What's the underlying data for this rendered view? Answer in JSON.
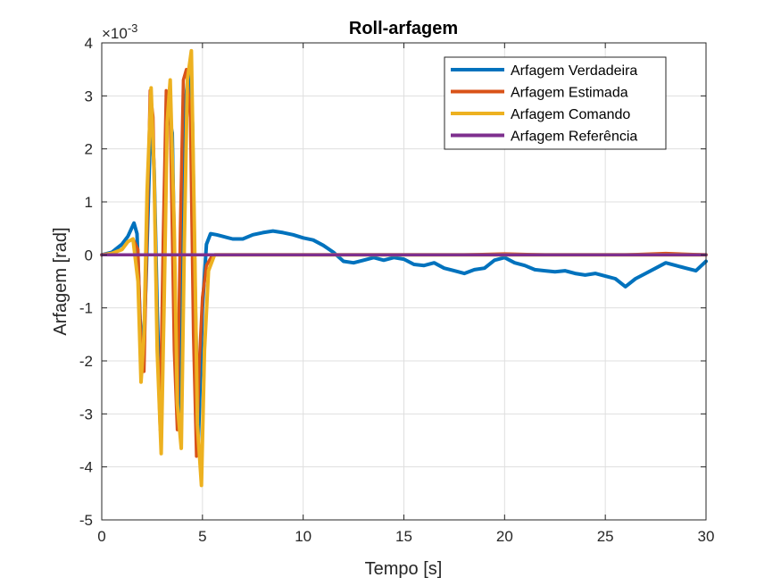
{
  "chart_data": {
    "type": "line",
    "title": "Roll-arfagem",
    "xlabel": "Tempo [s]",
    "ylabel": "Arfagem [rad]",
    "xlim": [
      0,
      30
    ],
    "ylim": [
      -5,
      4
    ],
    "y_exponent_label": "×10",
    "y_exponent_power": "-3",
    "x_ticks": [
      0,
      5,
      10,
      15,
      20,
      25,
      30
    ],
    "y_ticks": [
      -5,
      -4,
      -3,
      -2,
      -1,
      0,
      1,
      2,
      3,
      4
    ],
    "x_tick_labels": [
      "0",
      "5",
      "10",
      "15",
      "20",
      "25",
      "30"
    ],
    "y_tick_labels": [
      "-5",
      "-4",
      "-3",
      "-2",
      "-1",
      "0",
      "1",
      "2",
      "3",
      "4"
    ],
    "grid": true,
    "legend_position": "top-right",
    "series": [
      {
        "name": "Arfagem Verdadeira",
        "color": "#0072BD",
        "x": [
          0,
          0.5,
          1.0,
          1.3,
          1.6,
          1.75,
          1.9,
          2.05,
          2.2,
          2.45,
          2.6,
          2.75,
          2.9,
          3.1,
          3.25,
          3.5,
          3.65,
          3.8,
          4.0,
          4.15,
          4.3,
          4.5,
          4.65,
          4.8,
          5.0,
          5.2,
          5.4,
          5.7,
          6.0,
          6.5,
          7.0,
          7.5,
          8.0,
          8.5,
          9.0,
          9.5,
          10.0,
          10.5,
          11.0,
          11.5,
          12.0,
          12.5,
          13.0,
          13.5,
          14.0,
          14.5,
          15.0,
          15.5,
          16.0,
          16.5,
          17.0,
          17.5,
          18.0,
          18.5,
          19.0,
          19.5,
          20.0,
          20.5,
          21.0,
          21.5,
          22.0,
          22.5,
          23.0,
          23.5,
          24.0,
          24.5,
          25.0,
          25.5,
          26.0,
          26.5,
          27.0,
          27.5,
          28.0,
          28.5,
          29.0,
          29.5,
          30.0
        ],
        "y": [
          0,
          0.05,
          0.2,
          0.35,
          0.6,
          0.4,
          -1.2,
          -2.0,
          -0.5,
          2.8,
          1.6,
          -1.0,
          -3.0,
          0.0,
          2.8,
          2.3,
          -1.0,
          -3.2,
          0.5,
          2.9,
          3.4,
          2.5,
          -1.0,
          -3.5,
          -1.0,
          0.2,
          0.4,
          0.38,
          0.35,
          0.3,
          0.3,
          0.38,
          0.42,
          0.45,
          0.42,
          0.38,
          0.32,
          0.28,
          0.18,
          0.05,
          -0.12,
          -0.15,
          -0.1,
          -0.05,
          -0.1,
          -0.05,
          -0.08,
          -0.18,
          -0.2,
          -0.15,
          -0.25,
          -0.3,
          -0.35,
          -0.28,
          -0.25,
          -0.1,
          -0.05,
          -0.15,
          -0.2,
          -0.28,
          -0.3,
          -0.32,
          -0.3,
          -0.35,
          -0.38,
          -0.35,
          -0.4,
          -0.45,
          -0.6,
          -0.45,
          -0.35,
          -0.25,
          -0.15,
          -0.2,
          -0.25,
          -0.3,
          -0.12
        ]
      },
      {
        "name": "Arfagem Estimada",
        "color": "#D95319",
        "x": [
          0,
          0.5,
          1.0,
          1.3,
          1.55,
          1.8,
          1.95,
          2.1,
          2.25,
          2.4,
          2.55,
          2.75,
          2.9,
          3.05,
          3.2,
          3.4,
          3.6,
          3.75,
          3.9,
          4.05,
          4.2,
          4.4,
          4.55,
          4.7,
          4.85,
          5.0,
          5.2,
          5.5,
          5.8,
          6.5,
          8.0,
          10.0,
          12.0,
          14.0,
          16.0,
          18.0,
          20.0,
          22.0,
          24.0,
          26.0,
          28.0,
          30.0
        ],
        "y": [
          0,
          0.03,
          0.1,
          0.25,
          0.3,
          0.1,
          -1.8,
          -2.2,
          0.5,
          3.1,
          2.6,
          -1.5,
          -3.3,
          0.3,
          3.1,
          2.7,
          -1.8,
          -3.3,
          0.5,
          3.3,
          3.5,
          2.6,
          -1.5,
          -3.8,
          -2.0,
          -0.8,
          -0.2,
          0.0,
          0.0,
          0.0,
          0.0,
          0.0,
          0.0,
          0.0,
          0.0,
          0.0,
          0.02,
          0.0,
          0.0,
          0.0,
          0.03,
          0.0
        ]
      },
      {
        "name": "Arfagem Comando",
        "color": "#EDB120",
        "x": [
          0,
          0.5,
          1.0,
          1.3,
          1.55,
          1.8,
          1.95,
          2.1,
          2.25,
          2.45,
          2.6,
          2.75,
          2.95,
          3.1,
          3.25,
          3.4,
          3.6,
          3.75,
          3.95,
          4.1,
          4.25,
          4.45,
          4.6,
          4.75,
          4.95,
          5.1,
          5.3,
          5.6,
          6.0,
          8.0,
          10.0,
          15.0,
          20.0,
          25.0,
          30.0
        ],
        "y": [
          0,
          0.03,
          0.1,
          0.25,
          0.3,
          -0.5,
          -2.4,
          -1.5,
          1.2,
          3.15,
          1.5,
          -1.8,
          -3.75,
          -0.8,
          2.5,
          3.3,
          0.5,
          -2.8,
          -3.65,
          0.2,
          3.3,
          3.85,
          0.5,
          -3.2,
          -4.35,
          -1.8,
          -0.3,
          0.0,
          0.0,
          0.0,
          0.0,
          0.0,
          0.0,
          0.0,
          0.0
        ]
      },
      {
        "name": "Arfagem Referência",
        "color": "#7E2F8E",
        "x": [
          0,
          30
        ],
        "y": [
          0,
          0
        ]
      }
    ]
  }
}
